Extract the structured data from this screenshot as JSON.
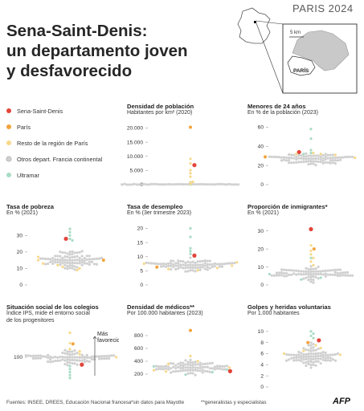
{
  "header": {
    "title_lines": [
      "Sena-Saint-Denis:",
      "un departamento joven",
      "y desfavorecido"
    ],
    "brand": "PARIS 2024"
  },
  "map": {
    "scale_label": "5 km",
    "city_label": "PARÍS"
  },
  "colors": {
    "seine_saint_denis": "#e2453a",
    "paris": "#f3a33c",
    "region": "#f8d98b",
    "other": "#d0d0d0",
    "overseas": "#a8dcc4"
  },
  "legend": [
    {
      "label": "Sena-Saint-Denis",
      "color_key": "seine_saint_denis"
    },
    {
      "label": "París",
      "color_key": "paris"
    },
    {
      "label": "Resto de la región de París",
      "color_key": "region"
    },
    {
      "label": "Otros depart. Francia continental",
      "color_key": "other"
    },
    {
      "label": "Ultramar",
      "color_key": "overseas"
    }
  ],
  "annotation": {
    "more_favoured_line1": "Más",
    "more_favoured_line2": "favorecido"
  },
  "footer": {
    "sources": "Fuentes: INSEE, DREES, Educación Nacional francesa",
    "note1": "*sin datos para Mayotte",
    "note2": "**generalistas y especialistas",
    "logo": "AFP"
  },
  "chart_data": [
    {
      "type": "scatter",
      "title": "Densidad de población",
      "subtitle": "Habitantes por km² (2020)",
      "ylim": [
        0,
        21000
      ],
      "yticks": [
        0,
        5000,
        10000,
        15000,
        20000
      ],
      "ytick_labels": [
        "0",
        "5.000",
        "10.000",
        "15.000",
        "20.000"
      ],
      "grid": false,
      "seine_saint_denis": 6900,
      "paris": 20300,
      "region_values": [
        9100,
        7500,
        5100,
        4000,
        2800,
        1000,
        700,
        250
      ],
      "overseas_values": [
        250,
        160,
        90,
        55,
        25
      ],
      "other_distribution": {
        "center": 120,
        "spread": 350,
        "count": 90
      }
    },
    {
      "type": "scatter",
      "title": "Menores de 24 años",
      "subtitle": "En % de la población (2023)",
      "ylim": [
        0,
        62
      ],
      "yticks": [
        0,
        20,
        40,
        60
      ],
      "ytick_labels": [
        "0",
        "20",
        "40",
        "60"
      ],
      "grid": false,
      "seine_saint_denis": 34,
      "paris": 29,
      "region_values": [
        33,
        32,
        32,
        31,
        28
      ],
      "overseas_values": [
        58,
        48,
        36,
        33,
        32
      ],
      "other_distribution": {
        "center": 27,
        "spread": 3.5,
        "count": 90
      }
    },
    {
      "type": "scatter",
      "title": "Tasa de pobreza",
      "subtitle": "En % (2021)",
      "ylim": [
        0,
        36
      ],
      "yticks": [
        0,
        10,
        20,
        30
      ],
      "ytick_labels": [
        "0",
        "10",
        "20",
        "30"
      ],
      "grid": false,
      "seine_saint_denis": 28,
      "paris": 15,
      "region_values": [
        17,
        15,
        13,
        12,
        11,
        10,
        9
      ],
      "overseas_values": [
        34,
        32,
        30,
        28,
        27
      ],
      "other_distribution": {
        "center": 15,
        "spread": 3.2,
        "count": 90
      }
    },
    {
      "type": "scatter",
      "title": "Tasa de desempleo",
      "subtitle": "En % (3er trimestre 2023)",
      "ylim": [
        0,
        21
      ],
      "yticks": [
        0,
        5,
        10,
        15,
        20
      ],
      "ytick_labels": [
        "0",
        "5",
        "10",
        "15",
        "20"
      ],
      "grid": false,
      "seine_saint_denis": 10.4,
      "paris": 6.3,
      "region_values": [
        8,
        7.5,
        6.8,
        6,
        5.6,
        5.2
      ],
      "overseas_values": [
        20,
        17,
        13,
        12,
        11
      ],
      "other_distribution": {
        "center": 7,
        "spread": 1.3,
        "count": 90
      }
    },
    {
      "type": "scatter",
      "title": "Proporción de inmigrantes*",
      "subtitle": "En % (2021)",
      "ylim": [
        0,
        33
      ],
      "yticks": [
        0,
        10,
        20,
        30
      ],
      "ytick_labels": [
        "0",
        "10",
        "20",
        "30"
      ],
      "grid": false,
      "seine_saint_denis": 31,
      "paris": 20,
      "region_values": [
        22,
        19,
        17,
        15,
        13,
        11
      ],
      "overseas_values": [
        15,
        6,
        4,
        3
      ],
      "other_distribution": {
        "center": 6,
        "spread": 2.6,
        "count": 90
      }
    },
    {
      "type": "scatter",
      "title": "Situación social de los colegios",
      "subtitle_lines": [
        "Índice IPS, mide el entorno social",
        "de los progenitores"
      ],
      "ylim": [
        60,
        140
      ],
      "yticks": [
        100
      ],
      "ytick_labels": [
        "100"
      ],
      "grid": false,
      "seine_saint_denis": 90,
      "paris": 118,
      "region_values": [
        133,
        119,
        111,
        108,
        104,
        100
      ],
      "overseas_values": [
        88,
        84,
        80,
        76,
        72
      ],
      "other_distribution": {
        "center": 100,
        "spread": 6,
        "count": 90
      }
    },
    {
      "type": "scatter",
      "title": "Densidad de médicos**",
      "subtitle": "Por 100.000 habitantes (2023)",
      "ylim": [
        0,
        950
      ],
      "yticks": [
        200,
        400,
        600,
        800
      ],
      "ytick_labels": [
        "200",
        "400",
        "600",
        "800"
      ],
      "grid": false,
      "seine_saint_denis": 245,
      "paris": 880,
      "region_values": [
        480,
        400,
        360,
        300,
        260,
        240
      ],
      "overseas_values": [
        320,
        270,
        230,
        190
      ],
      "other_distribution": {
        "center": 300,
        "spread": 70,
        "count": 90
      }
    },
    {
      "type": "scatter",
      "title": "Golpes y heridas voluntarias",
      "subtitle": "Por 1.000 habitantes",
      "ylim": [
        0,
        11
      ],
      "yticks": [
        0,
        2,
        4,
        6,
        8,
        10
      ],
      "ytick_labels": [
        "0",
        "2",
        "4",
        "6",
        "8",
        "10"
      ],
      "grid": false,
      "seine_saint_denis": 8.4,
      "paris": 8,
      "region_values": [
        7.5,
        7,
        6.5,
        6,
        5.8
      ],
      "overseas_values": [
        10,
        9.6,
        9.2,
        8.8
      ],
      "other_distribution": {
        "center": 5.5,
        "spread": 1.2,
        "count": 90
      }
    }
  ]
}
